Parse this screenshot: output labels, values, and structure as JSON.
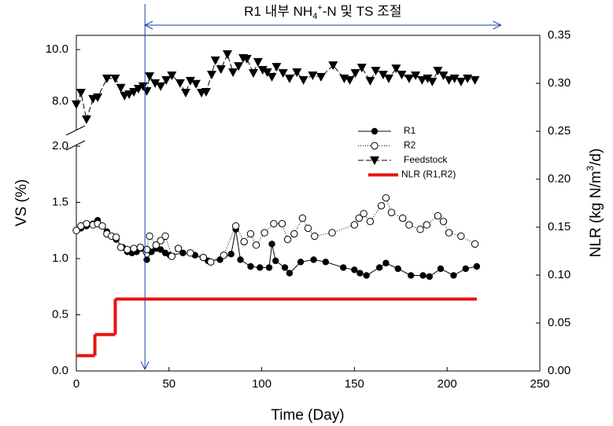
{
  "chart_data": {
    "type": "line",
    "xlabel": "Time (Day)",
    "ylabel": "VS (%)",
    "y2label": [
      "NLR (kg N/m",
      "3",
      "/d)"
    ],
    "annotation": {
      "text": [
        "R1 내부 NH",
        "4",
        "+",
        "-N 및 TS 조절"
      ],
      "x": [
        37,
        229
      ],
      "color": "#1f3ea8"
    },
    "xlim": [
      0,
      250
    ],
    "xticks": [
      0,
      50,
      100,
      150,
      200,
      250
    ],
    "ylim": [
      0,
      2.0
    ],
    "yticks": [
      {
        "value": 0,
        "label": "0.0"
      },
      0.5,
      {
        "value": 1,
        "label": "1.0"
      },
      1.5,
      {
        "value": 2,
        "label": "2.0"
      }
    ],
    "y_upper": {
      "ylim": [
        6.9,
        10.55
      ],
      "yticks": [
        {
          "value": 8,
          "label": "8.0"
        },
        {
          "value": 10,
          "label": "10.0"
        }
      ]
    },
    "y2lim": [
      0,
      0.35
    ],
    "y2ticks": [
      {
        "value": 0,
        "label": "0.00"
      },
      0.05,
      {
        "value": 0.1,
        "label": "0.10"
      },
      0.15,
      {
        "value": 0.2,
        "label": "0.20"
      },
      0.25,
      {
        "value": 0.3,
        "label": "0.30"
      },
      0.35
    ],
    "legend": "right",
    "series": [
      {
        "name": "R1",
        "color": "#000000",
        "marker": "filled-circle",
        "linestyle": "solid",
        "x": [
          0,
          2.5,
          5.5,
          9,
          11.5,
          14,
          16.5,
          19,
          21.5,
          25,
          27.5,
          30,
          32.5,
          35,
          38,
          40.5,
          43,
          45.5,
          48,
          50.5,
          57.5,
          64,
          71,
          77.5,
          83.5,
          86,
          88.5,
          94,
          99,
          104,
          105.5,
          107.5,
          112.5,
          115,
          121,
          128,
          134.5,
          144,
          150,
          153,
          156.5,
          163.5,
          167,
          173.5,
          180.5,
          187,
          190.5,
          196.5,
          203.5,
          210,
          216
        ],
        "values": [
          1.25,
          1.27,
          1.29,
          1.31,
          1.34,
          1.29,
          1.24,
          1.2,
          1.17,
          1.1,
          1.06,
          1.05,
          1.06,
          1.09,
          0.99,
          1.06,
          1.09,
          1.08,
          1.05,
          1.03,
          1.05,
          1.03,
          0.98,
          0.99,
          1.04,
          1.26,
          0.99,
          0.93,
          0.92,
          0.92,
          1.13,
          0.98,
          0.92,
          0.87,
          0.97,
          0.99,
          0.97,
          0.92,
          0.9,
          0.87,
          0.85,
          0.92,
          0.96,
          0.91,
          0.85,
          0.85,
          0.84,
          0.91,
          0.85,
          0.91,
          0.93
        ]
      },
      {
        "name": "R2",
        "color": "#000000",
        "marker": "open-circle",
        "linestyle": "dotted",
        "x": [
          0,
          2.5,
          5.5,
          9,
          11.5,
          14,
          16.5,
          19,
          21.5,
          24,
          27.5,
          31,
          34.5,
          38,
          39.5,
          43,
          45.5,
          48,
          51.5,
          55,
          61.5,
          68.5,
          72.5,
          79.5,
          86,
          90.5,
          94,
          97,
          101.5,
          106.5,
          111,
          114,
          117.5,
          122,
          125,
          128.5,
          138,
          150,
          152.5,
          155,
          158.5,
          164.5,
          167,
          170,
          176,
          179.5,
          185.5,
          189,
          195,
          198,
          201,
          207.5,
          215
        ],
        "values": [
          1.25,
          1.29,
          1.31,
          1.3,
          1.31,
          1.29,
          1.22,
          1.2,
          1.19,
          1.1,
          1.08,
          1.09,
          1.1,
          1.08,
          1.2,
          1.12,
          1.16,
          1.2,
          1.02,
          1.09,
          1.05,
          1.01,
          0.97,
          1.03,
          1.29,
          1.15,
          1.22,
          1.12,
          1.23,
          1.31,
          1.31,
          1.17,
          1.22,
          1.36,
          1.27,
          1.2,
          1.23,
          1.3,
          1.36,
          1.4,
          1.33,
          1.47,
          1.54,
          1.41,
          1.36,
          1.3,
          1.26,
          1.3,
          1.38,
          1.33,
          1.23,
          1.2,
          1.13
        ]
      },
      {
        "name": "Feedstock",
        "color": "#000000",
        "marker": "triangle-down",
        "linestyle": "dashed",
        "axis": "y_upper",
        "x": [
          0,
          2.5,
          5.5,
          9,
          11.5,
          16.5,
          21,
          24,
          26,
          28.5,
          31,
          33.5,
          36,
          38,
          39.5,
          42.5,
          45.5,
          48.5,
          51.5,
          56,
          59,
          61.5,
          64.5,
          67.5,
          70,
          73,
          75,
          78,
          81.5,
          84.5,
          87.5,
          90,
          92,
          95.5,
          98,
          100.5,
          103,
          105.5,
          108,
          111.5,
          115,
          119,
          122.5,
          127.5,
          132,
          138.5,
          144.5,
          147.5,
          150.5,
          154,
          158.5,
          161.5,
          165.5,
          168.5,
          172.5,
          175.5,
          179.5,
          183,
          186.5,
          189.5,
          192,
          195,
          198,
          201,
          204,
          207.5,
          211,
          215
        ],
        "values": [
          7.88,
          8.33,
          7.3,
          8.09,
          8.15,
          8.88,
          8.88,
          8.52,
          8.21,
          8.27,
          8.36,
          8.48,
          8.58,
          8.39,
          8.97,
          8.7,
          8.58,
          8.82,
          9.0,
          8.7,
          8.33,
          8.79,
          8.67,
          8.33,
          8.36,
          9.03,
          9.58,
          9.24,
          9.82,
          9.12,
          9.36,
          9.67,
          9.64,
          9.09,
          9.52,
          9.21,
          9.12,
          8.94,
          9.33,
          9.09,
          8.88,
          9.12,
          8.82,
          9.0,
          8.94,
          9.39,
          8.88,
          8.82,
          9.09,
          9.3,
          8.79,
          9.18,
          9.03,
          8.88,
          9.27,
          9.03,
          8.88,
          9.0,
          8.82,
          8.88,
          8.76,
          9.18,
          9.0,
          8.82,
          8.88,
          8.76,
          8.88,
          8.82
        ]
      },
      {
        "name": "NLR (R1,R2)",
        "color": "#e8130f",
        "marker": "none",
        "linestyle": "step",
        "axis": "y2",
        "edges": [
          0,
          10,
          21,
          216
        ],
        "values": [
          0.016,
          0.038,
          0.075
        ]
      }
    ]
  }
}
